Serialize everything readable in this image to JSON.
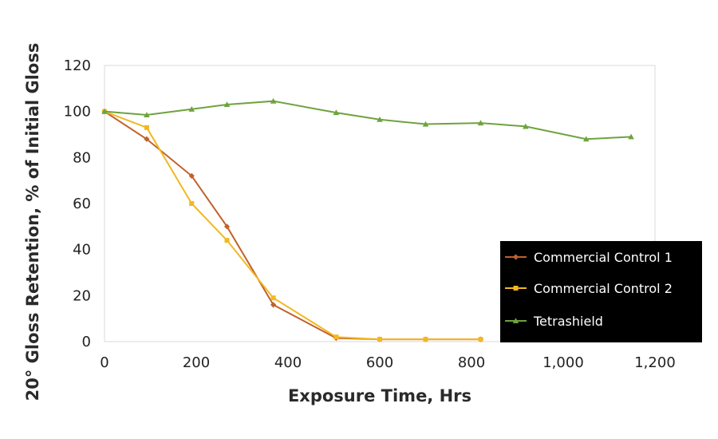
{
  "chart_data": {
    "type": "line",
    "title": "",
    "xlabel": "Exposure Time, Hrs",
    "ylabel": "20° Gloss Retention, % of Initial Gloss",
    "xlim": [
      0,
      1200
    ],
    "ylim": [
      0,
      120
    ],
    "x_ticks": [
      {
        "value": 0,
        "label": "0"
      },
      {
        "value": 200,
        "label": "200"
      },
      {
        "value": 400,
        "label": "400"
      },
      {
        "value": 600,
        "label": "600"
      },
      {
        "value": 800,
        "label": "800"
      },
      {
        "value": 1000,
        "label": "1,000"
      },
      {
        "value": 1200,
        "label": "1,200"
      }
    ],
    "y_ticks": [
      {
        "value": 0,
        "label": "0"
      },
      {
        "value": 20,
        "label": "20"
      },
      {
        "value": 40,
        "label": "40"
      },
      {
        "value": 60,
        "label": "60"
      },
      {
        "value": 80,
        "label": "80"
      },
      {
        "value": 100,
        "label": "100"
      },
      {
        "value": 120,
        "label": "120"
      }
    ],
    "grid": false,
    "legend_position": "bottom-right",
    "series": [
      {
        "name": "Commercial Control 1",
        "color": "#c0622a",
        "marker": "diamond",
        "x": [
          0,
          92,
          190,
          267,
          368,
          505,
          600,
          700,
          820
        ],
        "y": [
          100,
          88,
          72,
          50,
          16,
          1.5,
          1,
          1,
          1
        ]
      },
      {
        "name": "Commercial Control 2",
        "color": "#f2b822",
        "marker": "square",
        "x": [
          0,
          92,
          190,
          267,
          368,
          505,
          600,
          700,
          820
        ],
        "y": [
          100,
          93,
          60,
          44,
          19,
          2,
          1,
          1,
          1
        ]
      },
      {
        "name": "Tetrashield",
        "color": "#6ea33d",
        "marker": "triangle",
        "x": [
          0,
          92,
          190,
          267,
          368,
          505,
          600,
          700,
          820,
          918,
          1050,
          1148
        ],
        "y": [
          100,
          98.5,
          101,
          103,
          104.5,
          99.5,
          96.5,
          94.5,
          95,
          93.5,
          88,
          89
        ]
      }
    ]
  }
}
